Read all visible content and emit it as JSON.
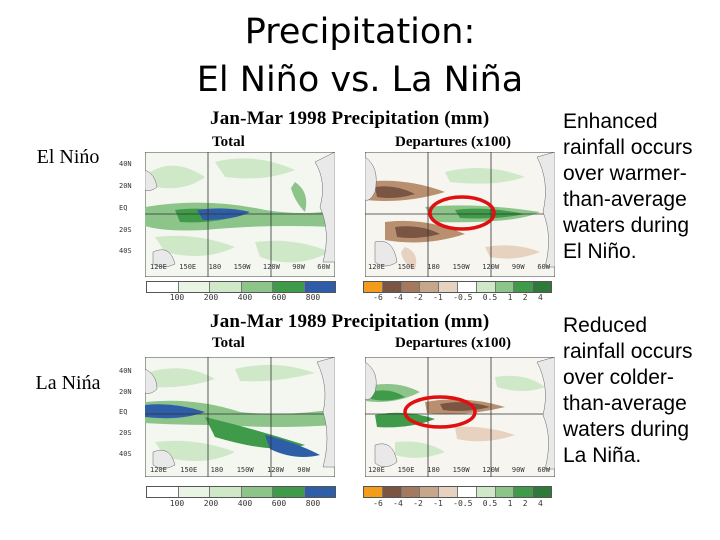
{
  "title_line1": "Precipitation:",
  "title_line2": "El Niño vs. La Niña",
  "rows": [
    {
      "label": "El Nińo",
      "fig_title": "Jan-Mar 1998 Precipitation (mm)",
      "total_label": "Total",
      "dep_label": "Departures (x100)",
      "side_lines": [
        "Enhanced",
        "rainfall occurs",
        "over warmer-",
        "than-average",
        "waters during",
        "El Niño."
      ],
      "lat_labels": [
        "40N",
        "20N",
        "EQ",
        "20S",
        "40S"
      ],
      "lon_left": [
        "120E",
        "150E",
        "180",
        "150W",
        "120W",
        "90W",
        "60W"
      ],
      "lon_right": [
        "120E",
        "150E",
        "180",
        "150W",
        "120W",
        "90W",
        "60W"
      ],
      "cbar_left_ticks": [
        "100",
        "200",
        "400",
        "600",
        "800"
      ],
      "cbar_right_ticks": [
        "-6",
        "-4",
        "-2",
        "-1",
        "-0.5",
        "0.5",
        "1",
        "2",
        "4"
      ]
    },
    {
      "label": "La Nińa",
      "fig_title": "Jan-Mar 1989 Precipitation (mm)",
      "total_label": "Total",
      "dep_label": "Departures (x100)",
      "side_lines": [
        "Reduced",
        "rainfall occurs",
        "over colder-",
        "than-average",
        "waters during",
        "La Niña."
      ],
      "lat_labels": [
        "40N",
        "20N",
        "EQ",
        "20S",
        "40S"
      ],
      "lon_left": [
        "120E",
        "150E",
        "180",
        "150W",
        "120W",
        "90W"
      ],
      "lon_right": [
        "120E",
        "150E",
        "180",
        "150W",
        "120W",
        "90W",
        "60W"
      ],
      "cbar_left_ticks": [
        "100",
        "200",
        "400",
        "600",
        "800"
      ],
      "cbar_right_ticks": [
        "-6",
        "-4",
        "-2",
        "-1",
        "-0.5",
        "0.5",
        "1",
        "2",
        "4"
      ]
    }
  ],
  "colors": {
    "wet_light": "#cfe8c8",
    "wet_mid": "#8cc48a",
    "wet_dark": "#3f9a4a",
    "heavy_blue": "#2f5ea8",
    "dry_light": "#e6d2bf",
    "dry_mid": "#b88f6f",
    "dry_dark": "#7a5544",
    "highlight_ring": "#e01010"
  }
}
